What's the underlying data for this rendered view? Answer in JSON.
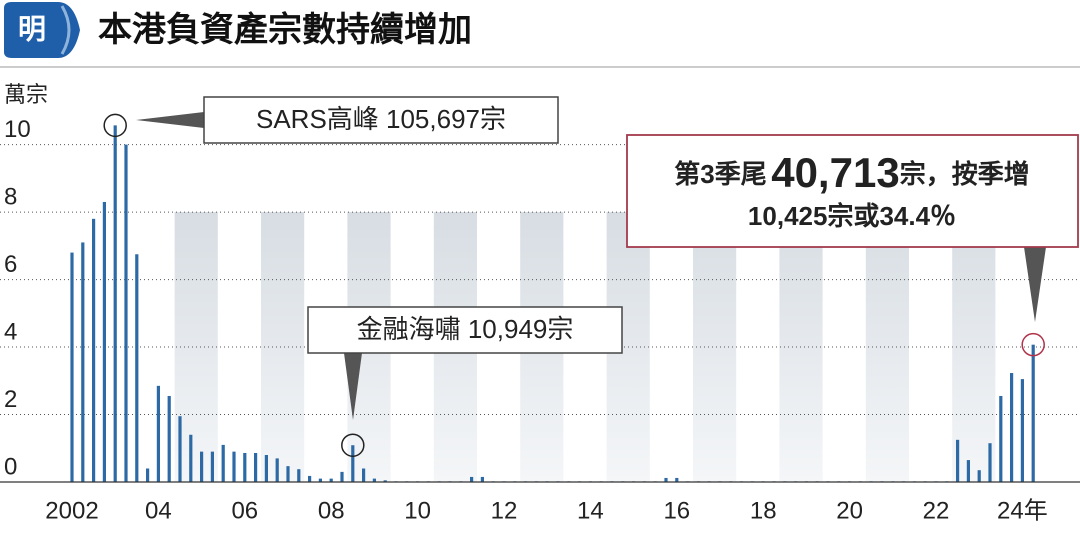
{
  "chart_data": {
    "type": "bar",
    "logo": "明",
    "title": "本港負資產宗數持續增加",
    "y_label": "萬宗",
    "annotations": {
      "sars": "SARS高峰 105,697宗",
      "crisis": "金融海嘯 10,949宗",
      "latest_prefix": "第3季尾",
      "latest_number": "40,713",
      "latest_suffix": "宗，按季增",
      "latest_change": "10,425宗或34.4％"
    },
    "categories": [
      "2002",
      null,
      null,
      null,
      null,
      null,
      null,
      null,
      "04",
      null,
      null,
      null,
      null,
      null,
      null,
      null,
      "06",
      null,
      null,
      null,
      null,
      null,
      null,
      null,
      "08",
      null,
      null,
      null,
      null,
      null,
      null,
      null,
      "10",
      null,
      null,
      null,
      null,
      null,
      null,
      null,
      "12",
      null,
      null,
      null,
      null,
      null,
      null,
      null,
      "14",
      null,
      null,
      null,
      null,
      null,
      null,
      null,
      "16",
      null,
      null,
      null,
      null,
      null,
      null,
      null,
      "18",
      null,
      null,
      null,
      null,
      null,
      null,
      null,
      "20",
      null,
      null,
      null,
      null,
      null,
      null,
      null,
      "22",
      null,
      null,
      null,
      null,
      null,
      null,
      null,
      "24年",
      null
    ],
    "values": [
      6.8,
      7.1,
      7.8,
      8.3,
      10.57,
      10.0,
      6.75,
      0.4,
      2.85,
      2.55,
      1.95,
      1.4,
      0.9,
      0.9,
      1.1,
      0.9,
      0.86,
      0.86,
      0.8,
      0.7,
      0.47,
      0.38,
      0.18,
      0.1,
      0.1,
      0.3,
      1.09,
      0.4,
      0.1,
      0.05,
      0.02,
      0.02,
      0.02,
      0.02,
      0.02,
      0.02,
      0.02,
      0.15,
      0.15,
      0.02,
      0.02,
      0.02,
      0.02,
      0.02,
      0.02,
      0.02,
      0.02,
      0.02,
      0.02,
      0.02,
      0.02,
      0.02,
      0.02,
      0.02,
      0.02,
      0.12,
      0.12,
      0.02,
      0.02,
      0.02,
      0.02,
      0.02,
      0.02,
      0.02,
      0.02,
      0.02,
      0.02,
      0.02,
      0.02,
      0.02,
      0.02,
      0.02,
      0.02,
      0.02,
      0.02,
      0.02,
      0.02,
      0.02,
      0.02,
      0.02,
      0.02,
      0.02,
      1.25,
      0.65,
      0.35,
      1.15,
      2.55,
      3.23,
      3.05,
      4.07
    ],
    "color": "#2d6aa5",
    "ylim": [
      0,
      11.5
    ],
    "yticks": [
      0,
      2,
      4,
      6,
      8,
      10
    ],
    "grid": true
  }
}
